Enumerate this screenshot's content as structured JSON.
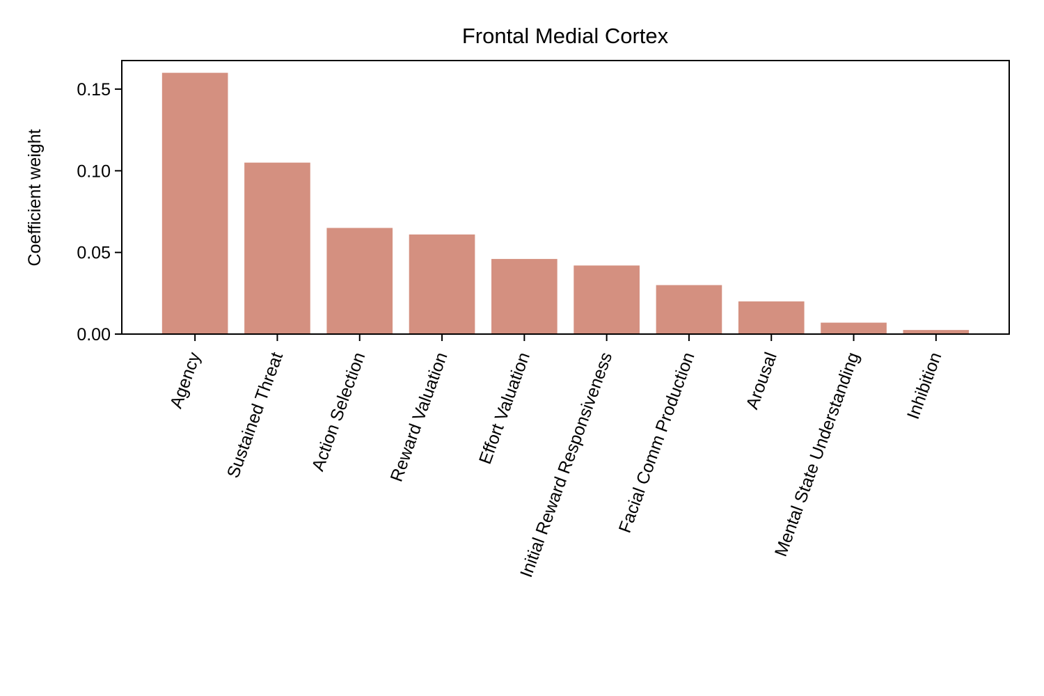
{
  "chart_data": {
    "type": "bar",
    "title": "Frontal Medial Cortex",
    "xlabel": "",
    "ylabel": "Coefficient weight",
    "categories": [
      "Agency",
      "Sustained Threat",
      "Action Selection",
      "Reward Valuation",
      "Effort Valuation",
      "Initial Reward Responsiveness",
      "Facial Comm Production",
      "Arousal",
      "Mental State Understanding",
      "Inhibition"
    ],
    "values": [
      0.16,
      0.105,
      0.065,
      0.061,
      0.046,
      0.042,
      0.03,
      0.02,
      0.007,
      0.0025
    ],
    "ylim": [
      0,
      0.1675
    ],
    "yticks": [
      0.0,
      0.05,
      0.1,
      0.15
    ],
    "ytick_labels": [
      "0.00",
      "0.05",
      "0.10",
      "0.15"
    ],
    "bar_color": "#d49080",
    "grid": false,
    "legend": "none"
  }
}
